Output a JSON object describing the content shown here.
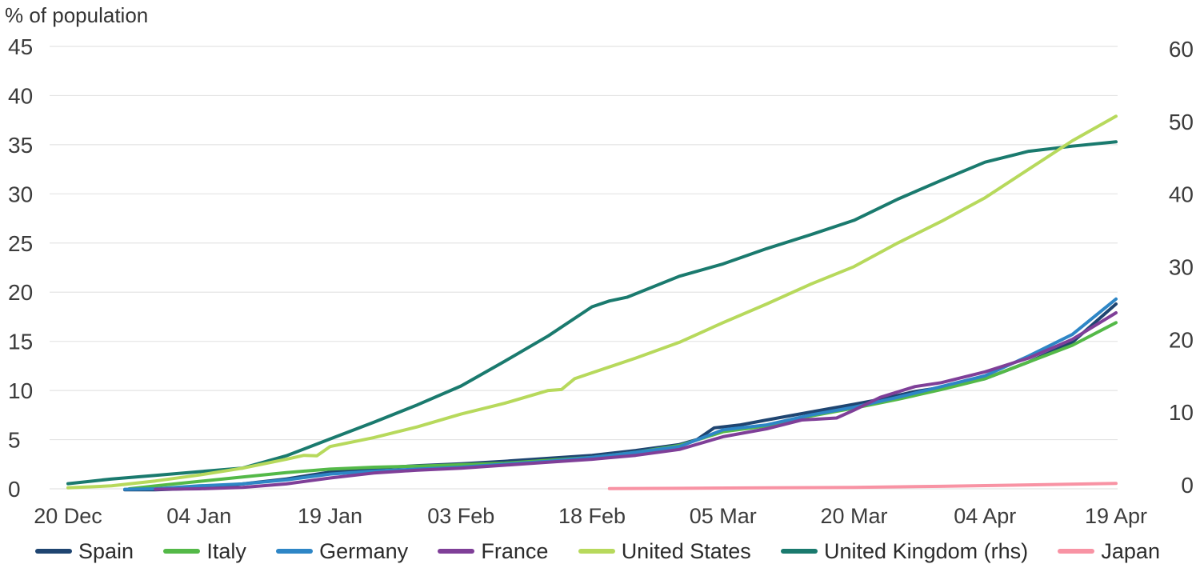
{
  "chart_data": {
    "type": "line",
    "title": "% of population",
    "subtitle": "",
    "grid": "horizontal",
    "legend_position": "bottom",
    "x_tick_labels": [
      "20 Dec",
      "04 Jan",
      "19 Jan",
      "03 Feb",
      "18 Feb",
      "05 Mar",
      "20 Mar",
      "04 Apr",
      "19 Apr"
    ],
    "x_tick_days": [
      0,
      15,
      30,
      45,
      60,
      75,
      90,
      105,
      120
    ],
    "x_range_days": [
      0,
      120
    ],
    "left_axis": {
      "ticks": [
        0,
        5,
        10,
        15,
        20,
        25,
        30,
        35,
        40,
        45
      ],
      "range": [
        0,
        45
      ]
    },
    "right_axis": {
      "ticks": [
        0,
        10,
        20,
        30,
        40,
        50,
        60
      ],
      "range": [
        0,
        60
      ]
    },
    "colors": {
      "spain": "#1f4571",
      "italy": "#54b948",
      "germany": "#2e86c6",
      "france": "#7f3f98",
      "united_states": "#b7d95c",
      "united_kingdom": "#1a7a6e",
      "japan": "#f893a4",
      "grid": "#e4e4e4",
      "text": "#3c3c3c"
    },
    "series": [
      {
        "name": "Spain",
        "color": "#1f4571",
        "axis": "left",
        "x": [
          6.5,
          10,
          15,
          20,
          25,
          30,
          35,
          40,
          45,
          50,
          55,
          60,
          65,
          70,
          72,
          74,
          77,
          80,
          85,
          90,
          93,
          97,
          100,
          105,
          110,
          115,
          120
        ],
        "y": [
          -0.1,
          -0.1,
          0.05,
          0.5,
          1.0,
          1.7,
          2.1,
          2.35,
          2.55,
          2.8,
          3.1,
          3.4,
          3.9,
          4.5,
          5.0,
          6.2,
          6.5,
          7.0,
          7.8,
          8.6,
          9.1,
          9.9,
          10.3,
          11.2,
          12.9,
          14.9,
          18.8
        ]
      },
      {
        "name": "Italy",
        "color": "#54b948",
        "axis": "left",
        "x": [
          7,
          10,
          15,
          20,
          25,
          30,
          35,
          40,
          45,
          50,
          55,
          60,
          65,
          70,
          75,
          80,
          85,
          90,
          95,
          100,
          105,
          110,
          115,
          120
        ],
        "y": [
          0,
          0.3,
          0.75,
          1.2,
          1.65,
          2.0,
          2.2,
          2.3,
          2.45,
          2.6,
          2.9,
          3.2,
          3.7,
          4.4,
          5.8,
          6.4,
          7.4,
          8.2,
          9.1,
          10.1,
          11.2,
          12.9,
          14.6,
          16.9
        ]
      },
      {
        "name": "Germany",
        "color": "#2e86c6",
        "axis": "left",
        "x": [
          6.5,
          10,
          15,
          20,
          25,
          30,
          35,
          40,
          45,
          50,
          55,
          60,
          65,
          70,
          75,
          80,
          85,
          90,
          95,
          100,
          105,
          110,
          115,
          120
        ],
        "y": [
          -0.05,
          0,
          0.3,
          0.5,
          0.9,
          1.5,
          1.8,
          2.0,
          2.2,
          2.5,
          2.8,
          3.2,
          3.7,
          4.3,
          6.0,
          6.5,
          7.5,
          8.3,
          9.3,
          10.4,
          11.5,
          13.5,
          15.7,
          19.3
        ]
      },
      {
        "name": "France",
        "color": "#7f3f98",
        "axis": "left",
        "x": [
          10,
          15,
          20,
          25,
          30,
          35,
          40,
          45,
          50,
          55,
          60,
          65,
          70,
          75,
          80,
          84,
          88,
          90,
          93,
          97,
          100,
          105,
          110,
          115,
          120
        ],
        "y": [
          -0.05,
          0,
          0.15,
          0.5,
          1.1,
          1.6,
          1.9,
          2.1,
          2.4,
          2.7,
          3.0,
          3.4,
          4.0,
          5.3,
          6.1,
          7.0,
          7.2,
          8.0,
          9.3,
          10.4,
          10.8,
          11.9,
          13.3,
          15.2,
          17.9
        ]
      },
      {
        "name": "United Kingdom (rhs)",
        "color": "#1a7a6e",
        "axis": "right",
        "x": [
          0,
          5,
          10,
          15,
          20,
          25,
          30,
          35,
          40,
          45,
          50,
          55,
          60,
          62,
          64,
          70,
          75,
          80,
          85,
          90,
          95,
          100,
          105,
          110,
          115,
          120
        ],
        "y": [
          0.15,
          0.8,
          1.3,
          1.8,
          2.3,
          4.0,
          6.3,
          8.6,
          11.0,
          13.6,
          17.0,
          20.5,
          24.5,
          25.3,
          25.8,
          28.7,
          30.4,
          32.5,
          34.4,
          36.4,
          39.3,
          41.9,
          44.4,
          45.9,
          46.6,
          47.2
        ]
      },
      {
        "name": "United States",
        "color": "#b7d95c",
        "axis": "left",
        "x": [
          0,
          5,
          10,
          15,
          20,
          25,
          27,
          28.5,
          30,
          35,
          40,
          45,
          50,
          55,
          56.5,
          58,
          60,
          65,
          70,
          75,
          80,
          85,
          90,
          95,
          100,
          105,
          110,
          115,
          120
        ],
        "y": [
          0.1,
          0.3,
          0.8,
          1.4,
          2.1,
          3.0,
          3.4,
          3.35,
          4.3,
          5.2,
          6.3,
          7.6,
          8.7,
          10.0,
          10.1,
          11.2,
          11.8,
          13.3,
          14.9,
          16.9,
          18.8,
          20.8,
          22.6,
          25.0,
          27.2,
          29.6,
          32.5,
          35.4,
          37.9
        ]
      },
      {
        "name": "Japan",
        "color": "#f893a4",
        "axis": "left",
        "x": [
          62,
          70,
          80,
          90,
          100,
          110,
          120
        ],
        "y": [
          0.02,
          0.05,
          0.1,
          0.15,
          0.25,
          0.4,
          0.55
        ]
      }
    ],
    "legend_order": [
      "Spain",
      "Italy",
      "Germany",
      "France",
      "United States",
      "United Kingdom (rhs)",
      "Japan"
    ]
  }
}
